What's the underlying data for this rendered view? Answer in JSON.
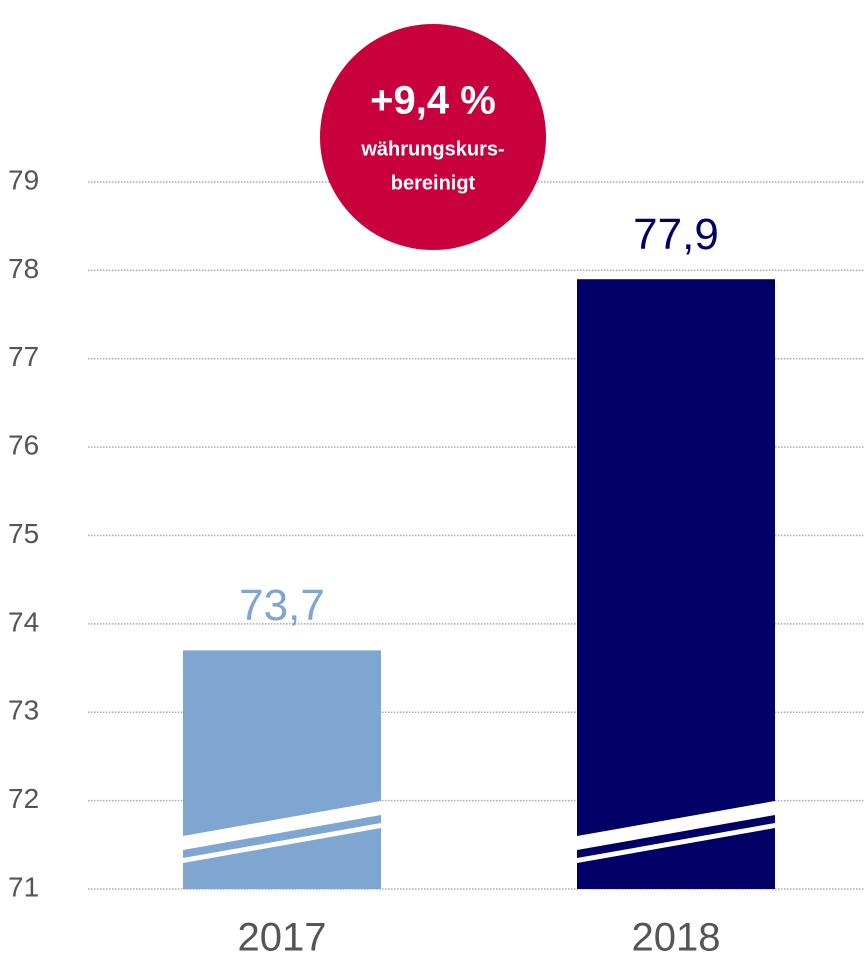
{
  "chart_data": {
    "type": "bar",
    "categories": [
      "2017",
      "2018"
    ],
    "values": [
      73.7,
      77.9
    ],
    "value_labels": [
      "73,7",
      "77,9"
    ],
    "colors": [
      "#7fa6d0",
      "#000066"
    ],
    "ylim": [
      71,
      79
    ],
    "yticks": [
      71,
      72,
      73,
      74,
      75,
      76,
      77,
      78,
      79
    ],
    "grid": true,
    "annotation": [
      "+9,4 %",
      "währungskurs-",
      "bereinigt"
    ],
    "annotation_color": "#c8003c"
  }
}
